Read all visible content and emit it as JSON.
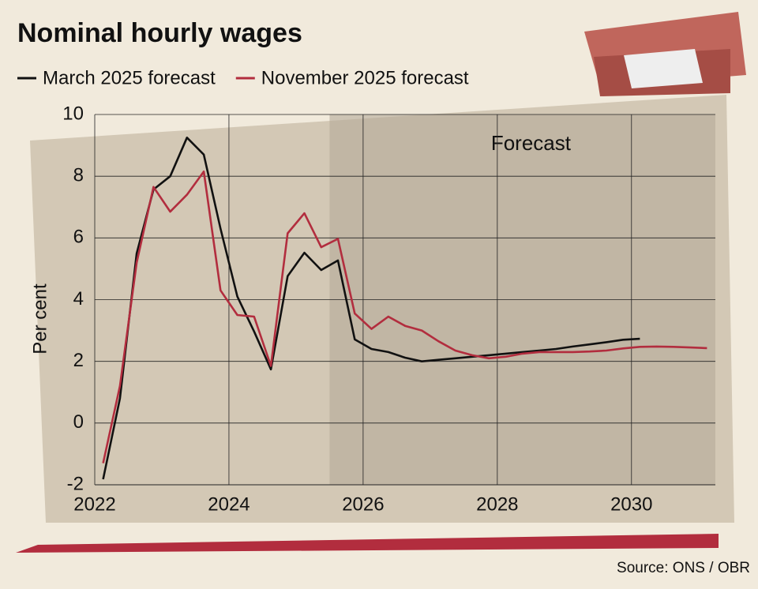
{
  "chart_data": {
    "type": "line",
    "title": "Nominal hourly wages",
    "y_label": "Per cent",
    "annotation": "Forecast",
    "forecast_start": 2025.5,
    "source": "Source: ONS / OBR",
    "x": [
      2022.125,
      2022.375,
      2022.625,
      2022.875,
      2023.125,
      2023.375,
      2023.625,
      2023.875,
      2024.125,
      2024.375,
      2024.625,
      2024.875,
      2025.125,
      2025.375,
      2025.625,
      2025.875,
      2026.125,
      2026.375,
      2026.625,
      2026.875,
      2027.125,
      2027.375,
      2027.625,
      2027.875,
      2028.125,
      2028.375,
      2028.625,
      2028.875,
      2029.125,
      2029.375,
      2029.625,
      2029.875,
      2030.125,
      2030.375,
      2030.625,
      2030.875,
      2031.125
    ],
    "series": [
      {
        "name": "March 2025 forecast",
        "color": "#111111",
        "values": [
          -1.82,
          0.8,
          5.5,
          7.57,
          8.0,
          9.25,
          8.7,
          6.3,
          4.1,
          2.97,
          1.74,
          4.76,
          5.52,
          4.96,
          5.27,
          2.71,
          2.4,
          2.3,
          2.12,
          2.0,
          2.05,
          2.1,
          2.15,
          2.2,
          2.25,
          2.3,
          2.35,
          2.4,
          2.48,
          2.55,
          2.62,
          2.7,
          2.73,
          null,
          null,
          null,
          null
        ]
      },
      {
        "name": "November 2025 forecast",
        "color": "#b22d3e",
        "values": [
          -1.3,
          1.2,
          5.2,
          7.65,
          6.85,
          7.4,
          8.15,
          4.3,
          3.5,
          3.45,
          1.85,
          6.15,
          6.8,
          5.7,
          5.97,
          3.55,
          3.05,
          3.45,
          3.15,
          3.0,
          2.65,
          2.35,
          2.2,
          2.1,
          2.15,
          2.25,
          2.3,
          2.3,
          2.3,
          2.32,
          2.35,
          2.42,
          2.47,
          2.48,
          2.47,
          2.45,
          2.43
        ]
      }
    ],
    "xlim": [
      2022,
      2031.25
    ],
    "xticks": [
      2022,
      2024,
      2026,
      2028,
      2030
    ],
    "ylim": [
      -2,
      10
    ],
    "yticks": [
      -2,
      0,
      2,
      4,
      6,
      8,
      10
    ],
    "grid": true
  }
}
